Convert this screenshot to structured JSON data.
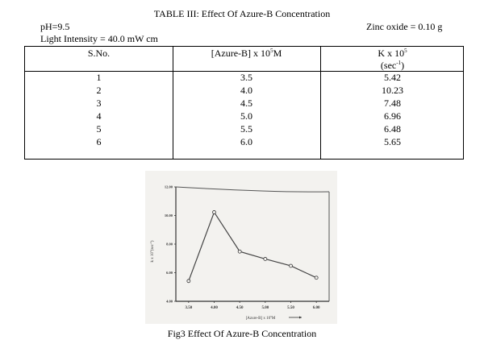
{
  "document": {
    "table_title": "TABLE III: Effect Of Azure-B Concentration",
    "ph_label": "pH=9.5",
    "zinc_label": "Zinc oxide = 0.10 g",
    "light_label": "Light Intensity = 40.0 mW cm",
    "table": {
      "headers": {
        "sno": "S.No.",
        "conc_main": "[Azure-B] x 10",
        "conc_exp": "5",
        "conc_unit": "M",
        "k_main": "K x 10",
        "k_exp": "5",
        "k_unit_open": "(sec",
        "k_unit_exp": "-1",
        "k_unit_close": ")"
      },
      "rows": [
        {
          "sno": "1",
          "conc": "3.5",
          "k": "5.42"
        },
        {
          "sno": "2",
          "conc": "4.0",
          "k": "10.23"
        },
        {
          "sno": "3",
          "conc": "4.5",
          "k": "7.48"
        },
        {
          "sno": "4",
          "conc": "5.0",
          "k": "6.96"
        },
        {
          "sno": "5",
          "conc": "5.5",
          "k": "6.48"
        },
        {
          "sno": "6",
          "conc": "6.0",
          "k": "5.65"
        }
      ]
    },
    "figure_caption": "Fig3  Effect Of Azure-B Concentration"
  },
  "chart_data": {
    "type": "line",
    "x": [
      3.5,
      4.0,
      4.5,
      5.0,
      5.5,
      6.0
    ],
    "values": [
      5.42,
      10.23,
      7.48,
      6.96,
      6.48,
      5.65
    ],
    "xlim": [
      3.25,
      6.25
    ],
    "ylim": [
      4.0,
      12.0
    ],
    "x_ticks": [
      "3.50",
      "4.00",
      "4.50",
      "5.00",
      "5.50",
      "6.00"
    ],
    "y_ticks": [
      "4.00",
      "6.00",
      "8.00",
      "10.00",
      "12.00"
    ],
    "xlabel": "[Azure-B] x 10",
    "xlabel_exp": "5",
    "xlabel_unit": "M",
    "ylabel": "k x 10",
    "ylabel_exp": "5",
    "ylabel_unit": "(sec",
    "ylabel_unit_exp": "-1",
    "ylabel_close": ")",
    "grid": false,
    "line_color": "#444444",
    "marker": "open-circle"
  }
}
